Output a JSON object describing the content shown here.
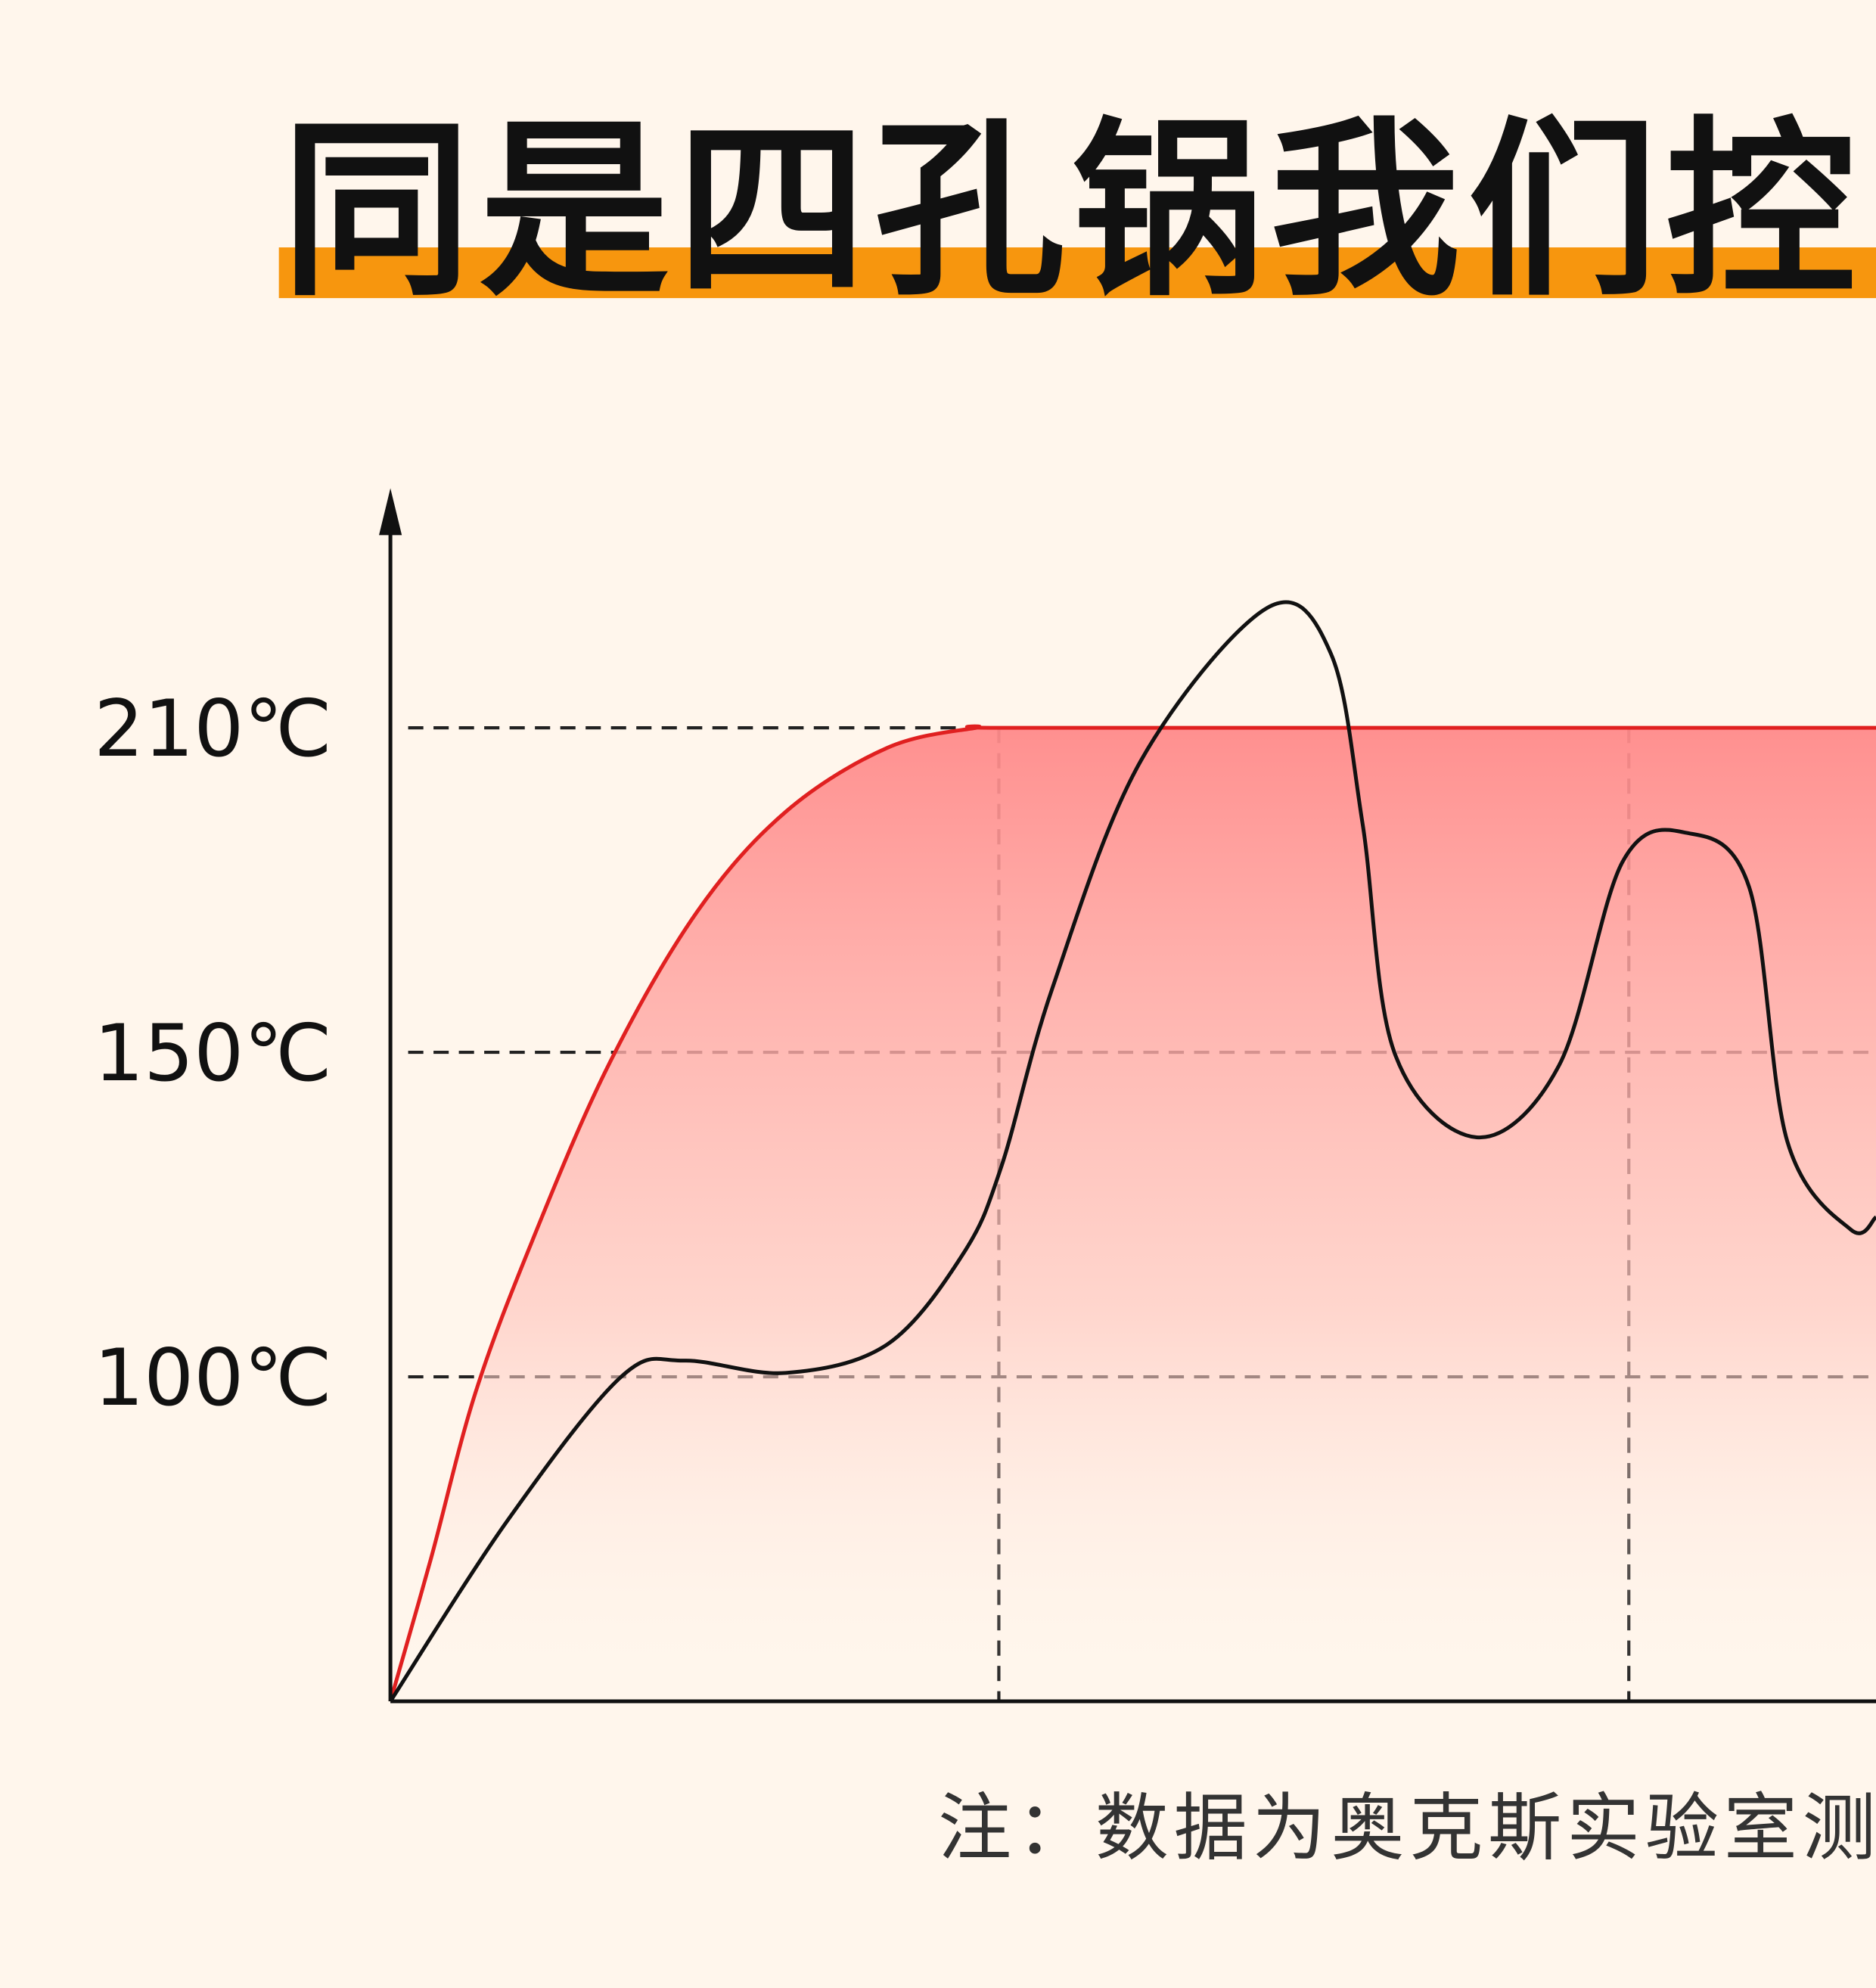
{
  "chart_data": {
    "type": "line",
    "title": "同是四孔锅我们控",
    "note": "注：数据为奥克斯实验室测",
    "xlim": [
      0,
      117.2
    ],
    "ylim": [
      0,
      250
    ],
    "xticks": [
      48,
      97.7
    ],
    "yticks": [
      {
        "value": 100,
        "label": "100℃"
      },
      {
        "value": 150,
        "label": "150℃"
      },
      {
        "value": 210,
        "label": "210℃"
      }
    ],
    "grid": true,
    "series": [
      {
        "color": "#e02020",
        "fill": true,
        "x": [
          0,
          3.2,
          6.7,
          11.2,
          17.2,
          24.2,
          31.2,
          39.2,
          46.2,
          48.2,
          80,
          117.2
        ],
        "values": [
          0,
          44,
          95,
          121,
          148,
          176,
          194.5,
          206.3,
          210,
          210,
          210,
          210
        ]
      },
      {
        "color": "#111111",
        "fill": false,
        "x": [
          0,
          9.2,
          18.2,
          23.2,
          31.2,
          39.2,
          45.2,
          48.2,
          52.2,
          59.2,
          69.2,
          74.2,
          76.7,
          79.2,
          85.7,
          92.2,
          97.2,
          102.2,
          107.2,
          110.2,
          115.2,
          117.2
        ],
        "values": [
          0,
          55.5,
          100,
          102.5,
          100.6,
          105,
          119,
          132.4,
          161.7,
          203.9,
          230.6,
          222.7,
          192.2,
          150,
          136.9,
          148,
          185.2,
          190.6,
          180.5,
          136.3,
          122.7,
          124.6
        ]
      }
    ]
  }
}
